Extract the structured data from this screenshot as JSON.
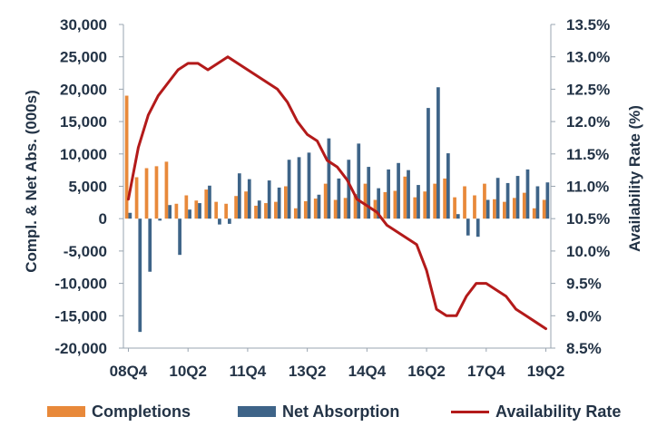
{
  "chart_data": {
    "type": "bar+line",
    "title": "",
    "y_left": {
      "label": "Compl. & Net Abs. (000s)",
      "ylim": [
        -20000,
        30000
      ],
      "ticks": [
        -20000,
        -15000,
        -10000,
        -5000,
        0,
        5000,
        10000,
        15000,
        20000,
        25000,
        30000
      ],
      "tick_labels": [
        "-20,000",
        "-15,000",
        "-10,000",
        "-5,000",
        "0",
        "5,000",
        "10,000",
        "15,000",
        "20,000",
        "25,000",
        "30,000"
      ]
    },
    "y_right": {
      "label": "Availability Rate (%)",
      "ylim": [
        8.5,
        13.5
      ],
      "ticks": [
        8.5,
        9.0,
        9.5,
        10.0,
        10.5,
        11.0,
        11.5,
        12.0,
        12.5,
        13.0,
        13.5
      ],
      "tick_labels": [
        "8.5%",
        "9.0%",
        "9.5%",
        "10.0%",
        "10.5%",
        "11.0%",
        "11.5%",
        "12.0%",
        "12.5%",
        "13.0%",
        "13.5%"
      ]
    },
    "x_tick_labels": [
      {
        "label": "08Q4",
        "index": 0
      },
      {
        "label": "10Q2",
        "index": 6
      },
      {
        "label": "11Q4",
        "index": 12
      },
      {
        "label": "13Q2",
        "index": 18
      },
      {
        "label": "14Q4",
        "index": 24
      },
      {
        "label": "16Q2",
        "index": 30
      },
      {
        "label": "17Q4",
        "index": 36
      },
      {
        "label": "19Q2",
        "index": 42
      }
    ],
    "series": [
      {
        "name": "Completions",
        "kind": "bar",
        "color": "#e8893a",
        "values": [
          19000,
          6400,
          7800,
          8100,
          8800,
          2300,
          3600,
          2800,
          4500,
          2600,
          2300,
          3500,
          4200,
          2000,
          2400,
          2600,
          5000,
          1600,
          2700,
          3100,
          5400,
          2900,
          3200,
          3800,
          5400,
          2900,
          4100,
          4300,
          6500,
          3300,
          4200,
          5400,
          6200,
          3300,
          5000,
          3600,
          5400,
          3000,
          2600,
          3200,
          4000,
          1600,
          2900
        ]
      },
      {
        "name": "Net Absorption",
        "kind": "bar",
        "color": "#3e6488",
        "values": [
          900,
          -17500,
          -8200,
          -300,
          2100,
          -5600,
          1400,
          2400,
          5100,
          -900,
          -800,
          7000,
          6100,
          2800,
          5900,
          4800,
          9100,
          9500,
          10200,
          3700,
          12400,
          6200,
          9100,
          11600,
          8000,
          4700,
          7600,
          8600,
          7500,
          5200,
          17100,
          20300,
          10100,
          700,
          -2600,
          -2800,
          2900,
          6300,
          5500,
          6600,
          7600,
          5000,
          5600
        ]
      },
      {
        "name": "Availability Rate",
        "kind": "line",
        "color": "#b31a1a",
        "axis": "right",
        "values": [
          10.8,
          11.6,
          12.1,
          12.4,
          12.6,
          12.8,
          12.9,
          12.9,
          12.8,
          12.9,
          13.0,
          12.9,
          12.8,
          12.7,
          12.6,
          12.5,
          12.3,
          12.0,
          11.8,
          11.7,
          11.4,
          11.3,
          11.1,
          10.8,
          10.7,
          10.6,
          10.4,
          10.3,
          10.2,
          10.1,
          9.7,
          9.1,
          9.0,
          9.0,
          9.3,
          9.5,
          9.5,
          9.4,
          9.3,
          9.1,
          9.0,
          8.9,
          8.8
        ]
      }
    ],
    "grid": false,
    "legend_position": "bottom"
  },
  "legend": {
    "completions": "Completions",
    "net_absorption": "Net Absorption",
    "availability_rate": "Availability Rate"
  },
  "colors": {
    "completions": "#e8893a",
    "net_absorption": "#3e6488",
    "availability": "#b31a1a",
    "text": "#233346",
    "axis": "#9aa5b1"
  }
}
